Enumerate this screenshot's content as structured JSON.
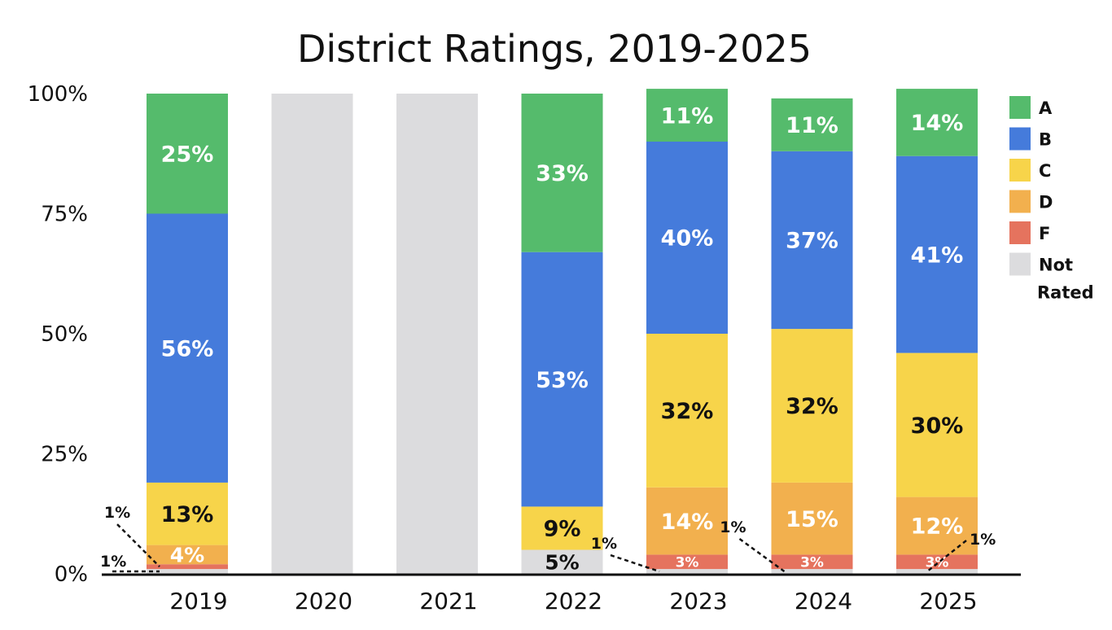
{
  "chart_data": {
    "type": "bar",
    "stacked": true,
    "title": "District Ratings, 2019-2025",
    "xlabel": "",
    "ylabel": "",
    "ylim": [
      0,
      100
    ],
    "y_ticks": [
      "0%",
      "25%",
      "50%",
      "75%",
      "100%"
    ],
    "categories": [
      "2019",
      "2020",
      "2021",
      "2022",
      "2023",
      "2024",
      "2025"
    ],
    "grid": false,
    "legend_position": "right",
    "series": [
      {
        "name": "Not Rated",
        "color": "#dcdcde",
        "label_color": "#111111",
        "values": [
          1,
          100,
          100,
          5,
          1,
          1,
          1
        ],
        "labels": [
          "",
          "",
          "",
          "5%",
          "",
          "",
          ""
        ]
      },
      {
        "name": "F",
        "color": "#e5735e",
        "label_color": "#ffffff",
        "values": [
          1,
          0,
          0,
          0,
          3,
          3,
          3
        ],
        "labels": [
          "",
          "",
          "",
          "",
          "3%",
          "3%",
          "3%"
        ]
      },
      {
        "name": "D",
        "color": "#f2b04e",
        "label_color": "#ffffff",
        "values": [
          4,
          0,
          0,
          0,
          14,
          15,
          12
        ],
        "labels": [
          "4%",
          "",
          "",
          "",
          "14%",
          "15%",
          "12%"
        ]
      },
      {
        "name": "C",
        "color": "#f7d44a",
        "label_color": "#111111",
        "values": [
          13,
          0,
          0,
          9,
          32,
          32,
          30
        ],
        "labels": [
          "13%",
          "",
          "",
          "9%",
          "32%",
          "32%",
          "30%"
        ]
      },
      {
        "name": "B",
        "color": "#457bdb",
        "label_color": "#ffffff",
        "values": [
          56,
          0,
          0,
          53,
          40,
          37,
          41
        ],
        "labels": [
          "56%",
          "",
          "",
          "53%",
          "40%",
          "37%",
          "41%"
        ]
      },
      {
        "name": "A",
        "color": "#55bb6c",
        "label_color": "#ffffff",
        "values": [
          25,
          0,
          0,
          33,
          11,
          11,
          14
        ],
        "labels": [
          "25%",
          "",
          "",
          "33%",
          "11%",
          "11%",
          "14%"
        ]
      }
    ],
    "legend": [
      {
        "text": "A",
        "color": "#55bb6c"
      },
      {
        "text": "B",
        "color": "#457bdb"
      },
      {
        "text": "C",
        "color": "#f7d44a"
      },
      {
        "text": "D",
        "color": "#f2b04e"
      },
      {
        "text": "F",
        "color": "#e5735e"
      },
      {
        "text": "Not",
        "text2": "Rated",
        "color": "#dcdcde"
      }
    ],
    "callouts": [
      {
        "text": "1%",
        "category": "2019",
        "series": "F"
      },
      {
        "text": "1%",
        "category": "2019",
        "series": "Not Rated"
      },
      {
        "text": "1%",
        "category": "2023",
        "series": "Not Rated"
      },
      {
        "text": "1%",
        "category": "2024",
        "series": "Not Rated"
      },
      {
        "text": "1%",
        "category": "2025",
        "series": "Not Rated"
      }
    ]
  }
}
